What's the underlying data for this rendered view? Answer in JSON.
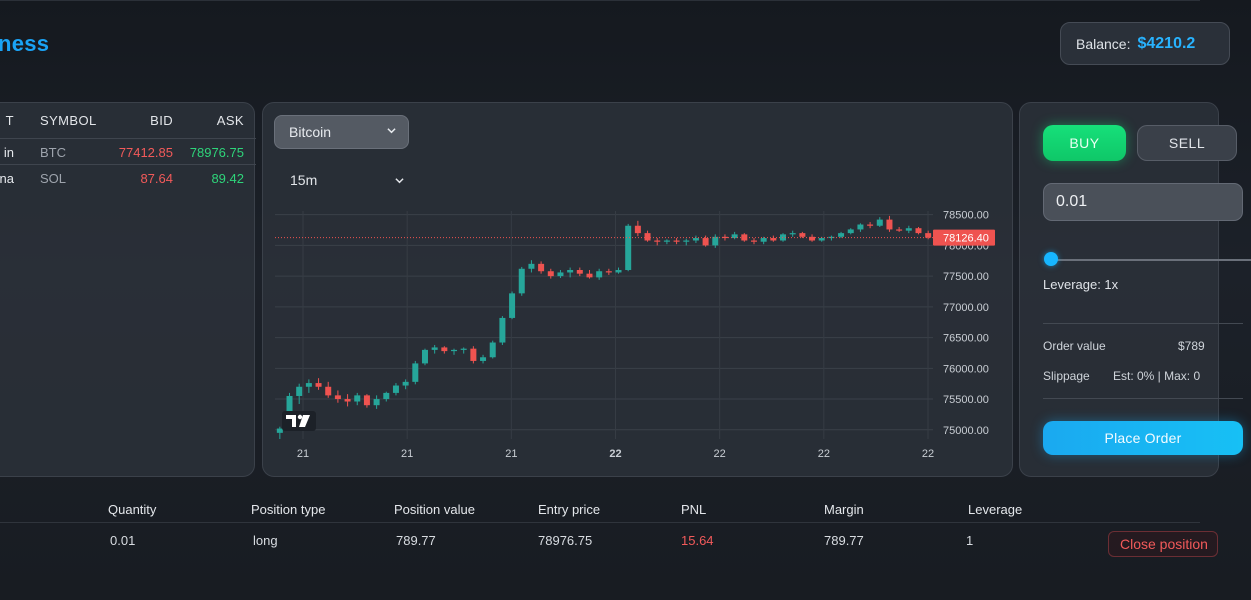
{
  "app": {
    "title_fragment": "ness"
  },
  "balance": {
    "label": "Balance:",
    "value": "$4210.2"
  },
  "markets": {
    "headers": {
      "name": "T",
      "symbol": "SYMBOL",
      "bid": "BID",
      "ask": "ASK"
    },
    "rows": [
      {
        "name": "in",
        "symbol": "BTC",
        "bid": "77412.85",
        "ask": "78976.75"
      },
      {
        "name": "na",
        "symbol": "SOL",
        "bid": "87.64",
        "ask": "89.42"
      }
    ]
  },
  "chart_controls": {
    "asset": "Bitcoin",
    "timeframe": "15m"
  },
  "chart_data": {
    "type": "candlestick",
    "current_price": 78126.4,
    "current_price_label": "78126.40",
    "ylim": [
      74850,
      78560
    ],
    "y_ticks": [
      "78500.00",
      "78000.00",
      "77500.00",
      "77000.00",
      "76500.00",
      "76000.00",
      "75500.00",
      "75000.00"
    ],
    "y_tick_values": [
      78500,
      78000,
      77500,
      77000,
      76500,
      76000,
      75500,
      75000
    ],
    "x_ticks": [
      "21",
      "21",
      "21",
      "22",
      "22",
      "22",
      "22"
    ],
    "x_tick_bold": [
      false,
      false,
      false,
      true,
      false,
      false,
      false
    ],
    "candles": [
      [
        74950,
        75050,
        74850,
        75020
      ],
      [
        75050,
        75600,
        75000,
        75550
      ],
      [
        75550,
        75750,
        75420,
        75700
      ],
      [
        75700,
        75820,
        75600,
        75760
      ],
      [
        75760,
        75840,
        75650,
        75700
      ],
      [
        75700,
        75780,
        75520,
        75560
      ],
      [
        75560,
        75640,
        75440,
        75500
      ],
      [
        75500,
        75580,
        75380,
        75460
      ],
      [
        75460,
        75600,
        75400,
        75560
      ],
      [
        75560,
        75580,
        75360,
        75400
      ],
      [
        75400,
        75560,
        75340,
        75500
      ],
      [
        75500,
        75620,
        75460,
        75600
      ],
      [
        75600,
        75760,
        75560,
        75720
      ],
      [
        75720,
        75820,
        75660,
        75780
      ],
      [
        75780,
        76120,
        75740,
        76080
      ],
      [
        76080,
        76320,
        76050,
        76300
      ],
      [
        76300,
        76380,
        76240,
        76340
      ],
      [
        76340,
        76360,
        76240,
        76280
      ],
      [
        76280,
        76320,
        76220,
        76300
      ],
      [
        76300,
        76340,
        76240,
        76320
      ],
      [
        76320,
        76360,
        76080,
        76120
      ],
      [
        76120,
        76220,
        76080,
        76180
      ],
      [
        76180,
        76450,
        76160,
        76420
      ],
      [
        76420,
        76850,
        76380,
        76820
      ],
      [
        76820,
        77250,
        76800,
        77220
      ],
      [
        77220,
        77650,
        77180,
        77620
      ],
      [
        77620,
        77760,
        77560,
        77700
      ],
      [
        77700,
        77740,
        77540,
        77580
      ],
      [
        77580,
        77620,
        77460,
        77500
      ],
      [
        77500,
        77600,
        77470,
        77560
      ],
      [
        77560,
        77640,
        77480,
        77600
      ],
      [
        77600,
        77640,
        77500,
        77540
      ],
      [
        77540,
        77600,
        77460,
        77480
      ],
      [
        77480,
        77620,
        77440,
        77580
      ],
      [
        77580,
        77620,
        77520,
        77560
      ],
      [
        77560,
        77640,
        77540,
        77600
      ],
      [
        77600,
        78350,
        77580,
        78320
      ],
      [
        78320,
        78400,
        78150,
        78200
      ],
      [
        78200,
        78240,
        78060,
        78080
      ],
      [
        78080,
        78120,
        78000,
        78060
      ],
      [
        78060,
        78100,
        78020,
        78080
      ],
      [
        78080,
        78120,
        78020,
        78060
      ],
      [
        78060,
        78110,
        78000,
        78080
      ],
      [
        78080,
        78160,
        78040,
        78120
      ],
      [
        78120,
        78160,
        77980,
        78000
      ],
      [
        78000,
        78180,
        77960,
        78140
      ],
      [
        78140,
        78180,
        78080,
        78120
      ],
      [
        78120,
        78220,
        78100,
        78180
      ],
      [
        78180,
        78200,
        78060,
        78080
      ],
      [
        78080,
        78120,
        78020,
        78060
      ],
      [
        78060,
        78140,
        78020,
        78120
      ],
      [
        78120,
        78160,
        78060,
        78080
      ],
      [
        78080,
        78200,
        78060,
        78180
      ],
      [
        78180,
        78240,
        78140,
        78200
      ],
      [
        78200,
        78220,
        78120,
        78140
      ],
      [
        78140,
        78180,
        78060,
        78080
      ],
      [
        78080,
        78140,
        78060,
        78120
      ],
      [
        78120,
        78160,
        78080,
        78140
      ],
      [
        78140,
        78220,
        78120,
        78200
      ],
      [
        78200,
        78280,
        78180,
        78260
      ],
      [
        78260,
        78360,
        78220,
        78340
      ],
      [
        78340,
        78380,
        78280,
        78320
      ],
      [
        78320,
        78460,
        78300,
        78420
      ],
      [
        78420,
        78480,
        78220,
        78260
      ],
      [
        78260,
        78300,
        78220,
        78240
      ],
      [
        78240,
        78320,
        78200,
        78280
      ],
      [
        78280,
        78300,
        78180,
        78200
      ],
      [
        78200,
        78240,
        78100,
        78126
      ]
    ]
  },
  "order": {
    "buy": "BUY",
    "sell": "SELL",
    "quantity": "0.01",
    "leverage_label": "Leverage: 1x",
    "leverage_value": 1,
    "order_value_label": "Order value",
    "order_value": "$789",
    "slippage_label": "Slippage",
    "slippage_value": "Est: 0% | Max: 0",
    "place_order": "Place Order"
  },
  "positions": {
    "headers": [
      "Quantity",
      "Position type",
      "Position value",
      "Entry price",
      "PNL",
      "Margin",
      "Leverage"
    ],
    "row": {
      "quantity": "0.01",
      "type": "long",
      "value": "789.77",
      "entry": "78976.75",
      "pnl": "15.64",
      "margin": "789.77",
      "leverage": "1"
    },
    "close_label": "Close position"
  },
  "colors": {
    "up": "#26a69a",
    "down": "#ef5350",
    "accent": "#1aa3f5",
    "buy": "#16e07a"
  }
}
